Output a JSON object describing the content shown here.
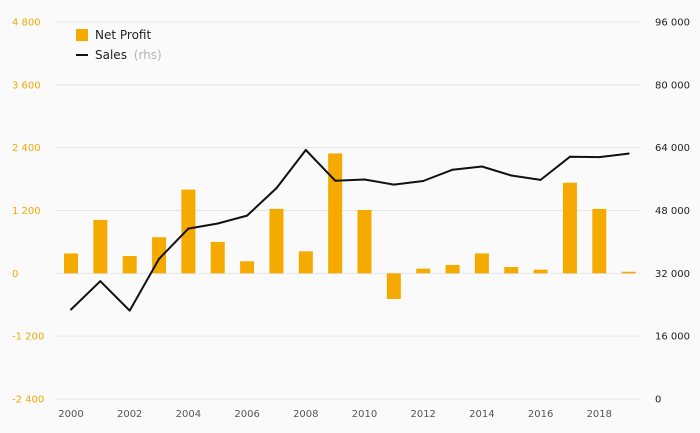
{
  "colors": {
    "bars": "#f5aa00",
    "line": "#111111",
    "grid": "#e6e6e6",
    "left_axis": "#f2a900",
    "right_axis": "#222222"
  },
  "legend": {
    "placement": "top-left",
    "bar_label": "Net Profit",
    "line_label": "Sales",
    "line_sublabel": "(rhs)"
  },
  "chart_data": {
    "type": "bar",
    "grid": true,
    "categories": [
      "2000",
      "2001",
      "2002",
      "2003",
      "2004",
      "2005",
      "2006",
      "2007",
      "2008",
      "2009",
      "2010",
      "2011",
      "2012",
      "2013",
      "2014",
      "2015",
      "2016",
      "2017",
      "2018",
      "2019"
    ],
    "x_tick_labels": [
      "2000",
      "2002",
      "2004",
      "2006",
      "2008",
      "2010",
      "2012",
      "2014",
      "2016",
      "2018"
    ],
    "left_axis": {
      "ylim": [
        -2400,
        4800
      ],
      "ticks": [
        -2400,
        -1200,
        0,
        1200,
        2400,
        3600,
        4800
      ],
      "tick_labels": [
        "-2 400",
        "-1 200",
        "0",
        "1 200",
        "2 400",
        "3 600",
        "4 800"
      ]
    },
    "right_axis": {
      "ylim": [
        0,
        96000
      ],
      "ticks": [
        0,
        16000,
        32000,
        48000,
        64000,
        80000,
        96000
      ],
      "tick_labels": [
        "0",
        "16 000",
        "32 000",
        "48 000",
        "64 000",
        "80 000",
        "96 000"
      ]
    },
    "series": [
      {
        "name": "Net Profit",
        "type": "bar",
        "axis": "left",
        "values": [
          380,
          1020,
          330,
          690,
          1600,
          600,
          230,
          1230,
          420,
          2290,
          1210,
          -490,
          90,
          160,
          380,
          120,
          70,
          1730,
          1230,
          30
        ]
      },
      {
        "name": "Sales",
        "type": "line",
        "axis": "right",
        "values": [
          22800,
          30000,
          22500,
          35700,
          43400,
          44700,
          46700,
          53700,
          63400,
          55600,
          55900,
          54600,
          55500,
          58400,
          59200,
          56900,
          55800,
          61700,
          61600,
          62500
        ]
      }
    ]
  }
}
